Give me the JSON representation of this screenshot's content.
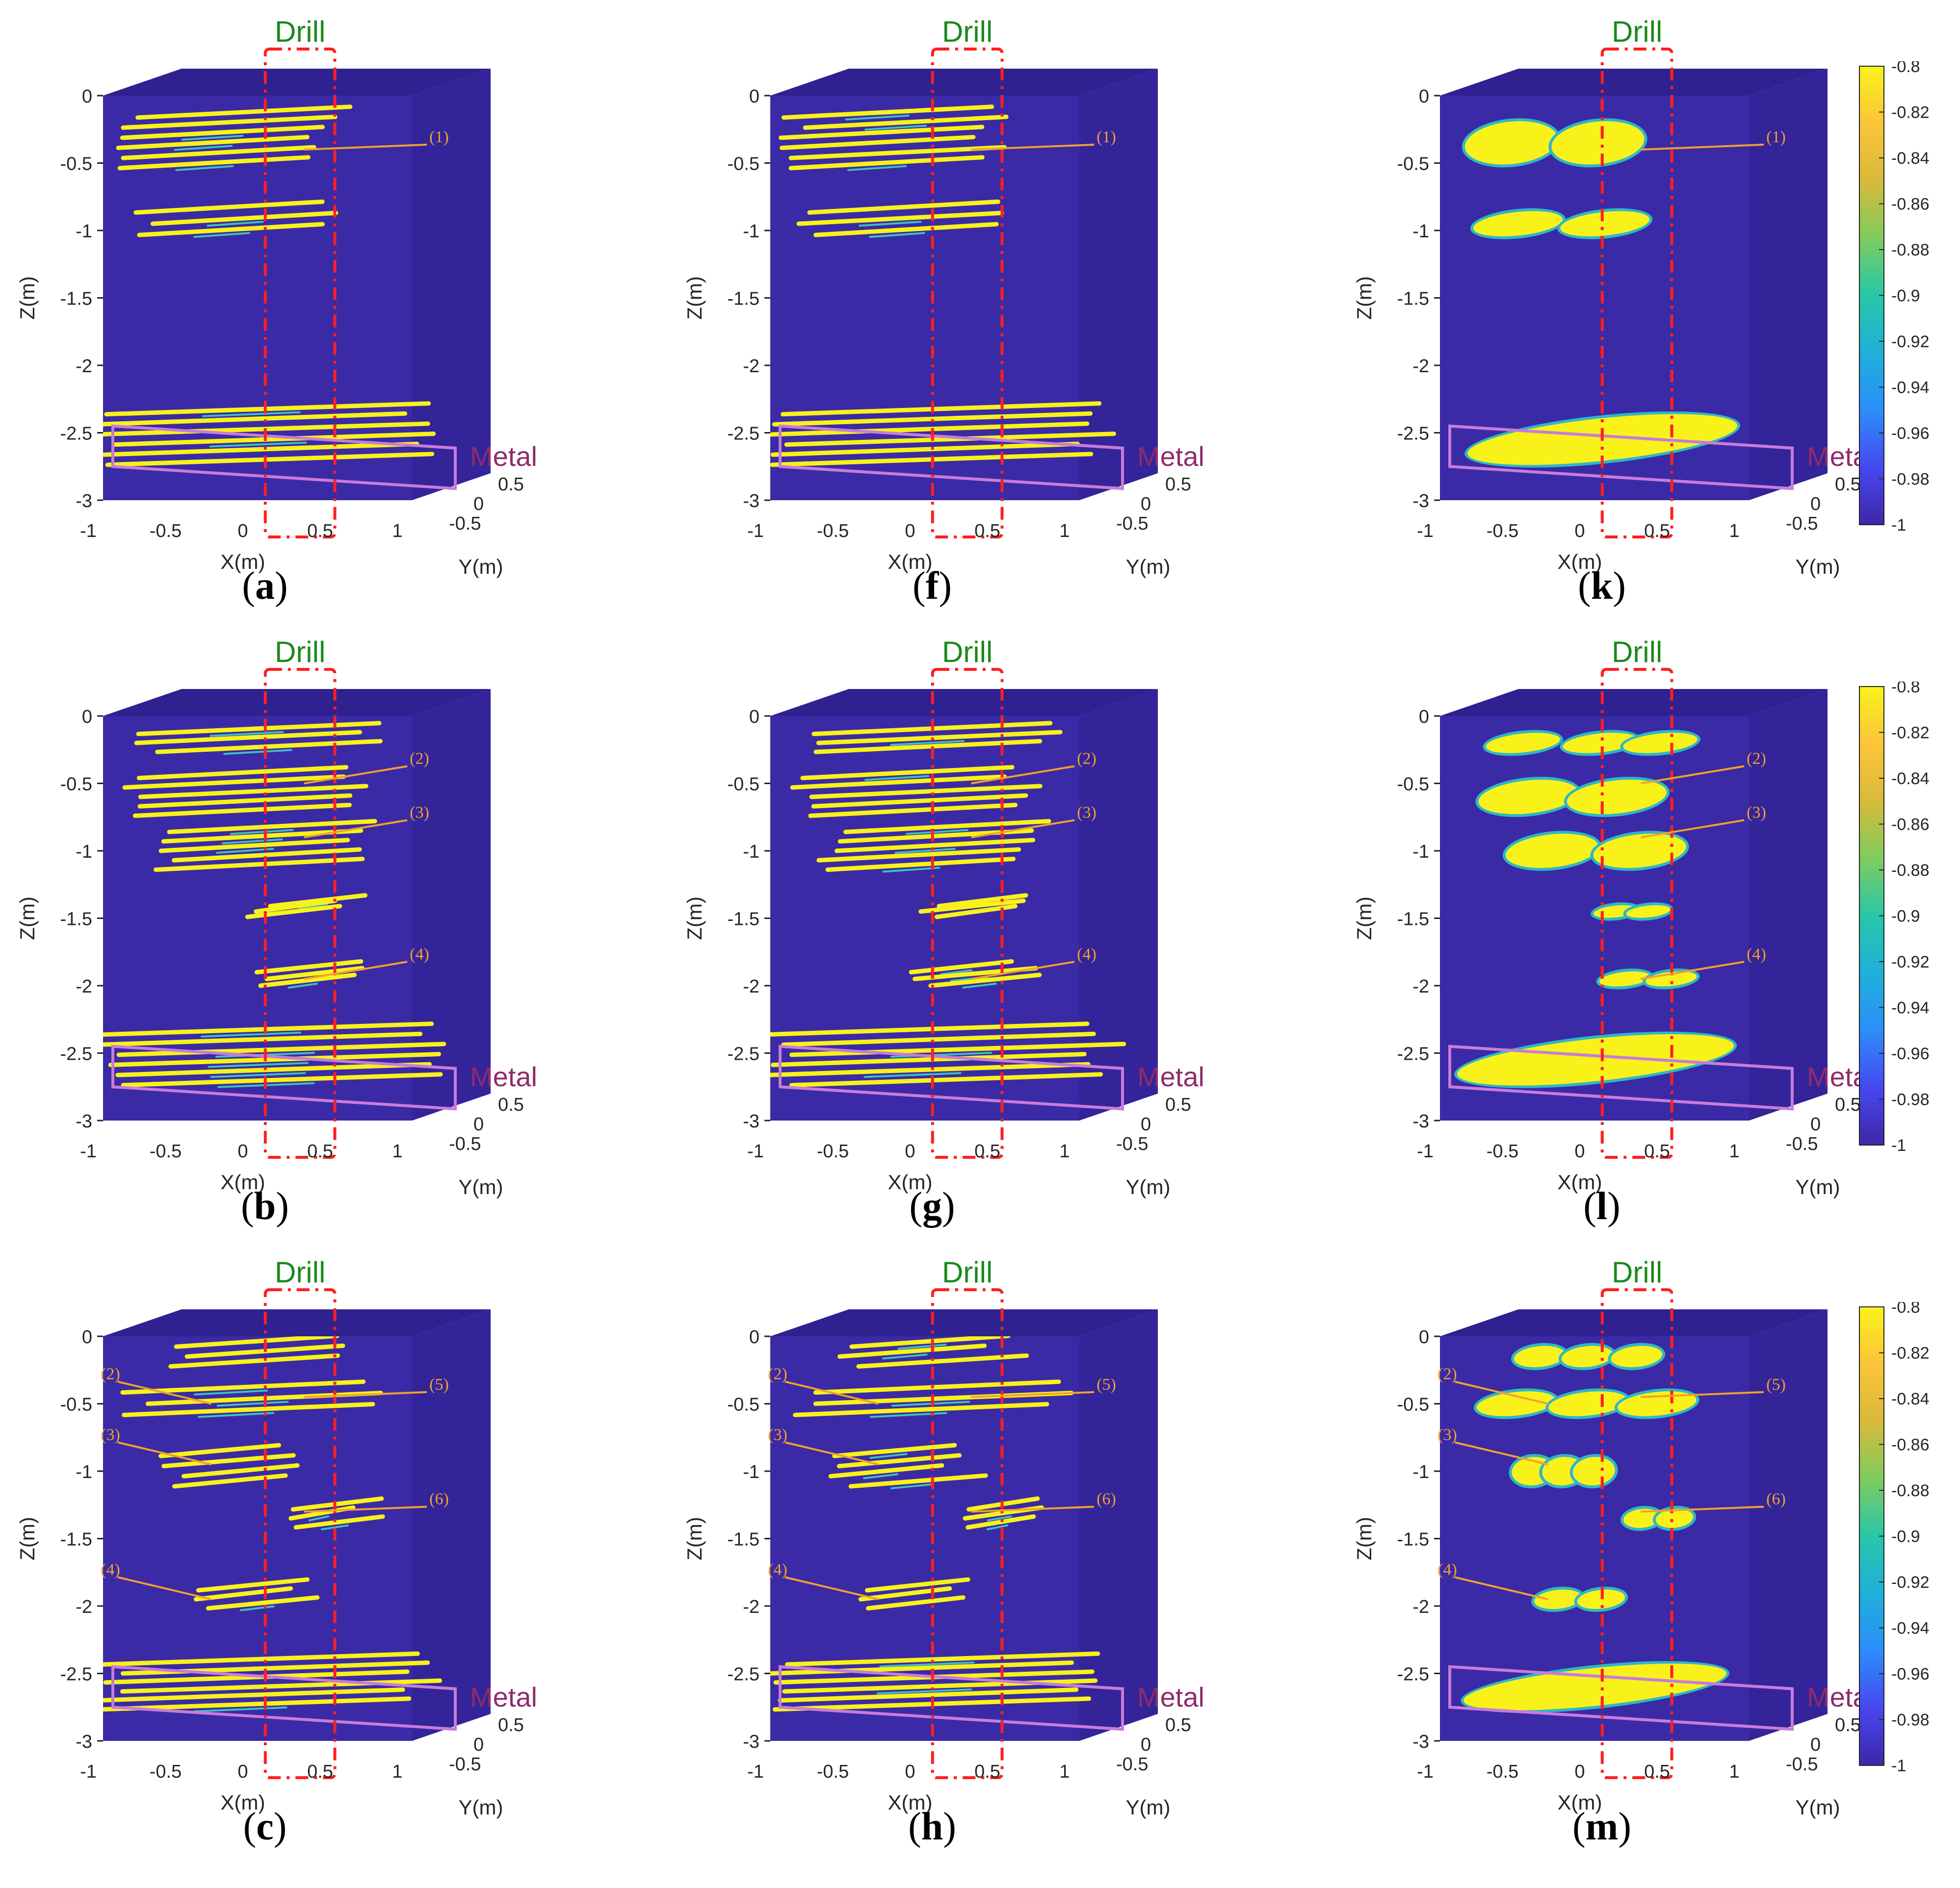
{
  "labels": {
    "drill": "Drill",
    "metal": "Metal",
    "x_axis": "X(m)",
    "y_axis": "Y(m)",
    "z_axis": "Z(m)"
  },
  "axes": {
    "x_ticks": [
      "-1",
      "-0.5",
      "0",
      "0.5",
      "1"
    ],
    "y_ticks": [
      "-0.5",
      "0",
      "0.5"
    ],
    "z_ticks": [
      "0",
      "-0.5",
      "-1",
      "-1.5",
      "-2",
      "-2.5",
      "-3"
    ],
    "xlim": [
      -1,
      1
    ],
    "ylim": [
      -0.5,
      0.5
    ],
    "zlim": [
      -3,
      0
    ]
  },
  "colorbar": {
    "ticks": [
      "-0.8",
      "-0.82",
      "-0.84",
      "-0.86",
      "-0.88",
      "-0.9",
      "-0.92",
      "-0.94",
      "-0.96",
      "-0.98",
      "-1"
    ],
    "range": [
      -1,
      -0.8
    ],
    "low_color": "#3a27a5",
    "high_color": "#fff41c"
  },
  "colors": {
    "background_volume": "#3a2aa5",
    "anomaly": "#f8f21a",
    "drill_box": "#ff1f1f",
    "drill_text": "#1a8a1a",
    "metal_box": "#c77cd8",
    "metal_text": "#8f2b6b",
    "annotation": "#f0a030"
  },
  "chart_data": {
    "type": "3d-volume-slices",
    "panels": [
      {
        "id": "a",
        "label": "(a)",
        "style": "striped",
        "annotations": [
          {
            "text": "(1)",
            "z": -0.4
          }
        ]
      },
      {
        "id": "f",
        "label": "(f)",
        "style": "striped",
        "annotations": [
          {
            "text": "(1)",
            "z": -0.4
          }
        ]
      },
      {
        "id": "k",
        "label": "(k)",
        "style": "smooth",
        "annotations": [
          {
            "text": "(1)",
            "z": -0.4
          }
        ]
      },
      {
        "id": "b",
        "label": "(b)",
        "style": "striped",
        "annotations": [
          {
            "text": "(2)",
            "z": -0.5
          },
          {
            "text": "(3)",
            "z": -0.9
          },
          {
            "text": "(4)",
            "z": -1.95
          }
        ]
      },
      {
        "id": "g",
        "label": "(g)",
        "style": "striped",
        "annotations": [
          {
            "text": "(2)",
            "z": -0.5
          },
          {
            "text": "(3)",
            "z": -0.9
          },
          {
            "text": "(4)",
            "z": -1.95
          }
        ]
      },
      {
        "id": "l",
        "label": "(l)",
        "style": "smooth",
        "annotations": [
          {
            "text": "(2)",
            "z": -0.5
          },
          {
            "text": "(3)",
            "z": -0.9
          },
          {
            "text": "(4)",
            "z": -1.95
          }
        ]
      },
      {
        "id": "c",
        "label": "(c)",
        "style": "striped",
        "annotations": [
          {
            "text": "(2)",
            "z": -0.5
          },
          {
            "text": "(3)",
            "z": -0.95
          },
          {
            "text": "(4)",
            "z": -1.95
          },
          {
            "text": "(5)",
            "z": -0.45
          },
          {
            "text": "(6)",
            "z": -1.3
          }
        ]
      },
      {
        "id": "h",
        "label": "(h)",
        "style": "striped",
        "annotations": [
          {
            "text": "(2)",
            "z": -0.5
          },
          {
            "text": "(3)",
            "z": -0.95
          },
          {
            "text": "(4)",
            "z": -1.95
          },
          {
            "text": "(5)",
            "z": -0.45
          },
          {
            "text": "(6)",
            "z": -1.3
          }
        ]
      },
      {
        "id": "m",
        "label": "(m)",
        "style": "smooth",
        "annotations": [
          {
            "text": "(2)",
            "z": -0.5
          },
          {
            "text": "(3)",
            "z": -0.95
          },
          {
            "text": "(4)",
            "z": -1.95
          },
          {
            "text": "(5)",
            "z": -0.45
          },
          {
            "text": "(6)",
            "z": -1.3
          }
        ]
      }
    ]
  }
}
